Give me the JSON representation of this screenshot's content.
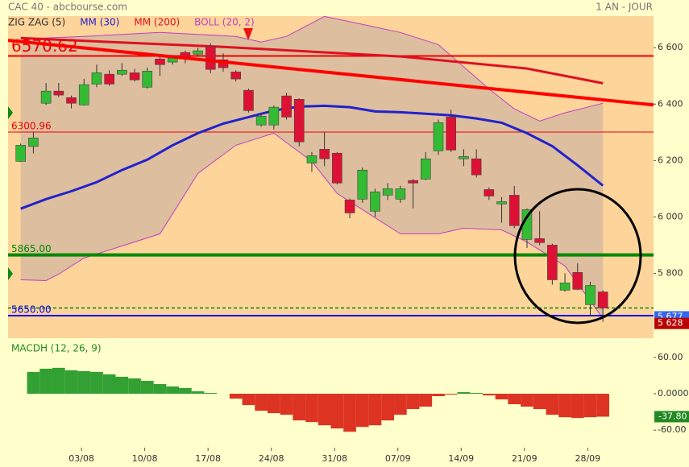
{
  "header": {
    "title": "CAC 40 - abcbourse.com",
    "period": "1 AN - JOUR"
  },
  "chart_data": [
    {
      "type": "candlestick",
      "indicators": [
        {
          "name": "ZIG ZAG (5)",
          "color": "#333333"
        },
        {
          "name": "MM (30)",
          "color": "#2222cc",
          "x": [
            0,
            2,
            4,
            6,
            8,
            10,
            12,
            14,
            16,
            18,
            20,
            22,
            24,
            26,
            28,
            30,
            32,
            34,
            36,
            38,
            40,
            42,
            44,
            46
          ],
          "values": [
            6029,
            6063,
            6091,
            6123,
            6166,
            6203,
            6254,
            6297,
            6331,
            6354,
            6377,
            6391,
            6394,
            6389,
            6374,
            6371,
            6366,
            6360,
            6349,
            6334,
            6297,
            6251,
            6183,
            6111
          ]
        },
        {
          "name": "MM (200)",
          "color": "#dd1122",
          "x": [
            0,
            16,
            30,
            40,
            46
          ],
          "values": [
            6634,
            6603,
            6569,
            6526,
            6474
          ]
        },
        {
          "name": "BOLL (20, 2)",
          "color": "#c040c0",
          "upper": {
            "x": [
              0,
              5,
              11,
              17,
              19,
              21,
              24,
              27,
              30,
              33,
              37,
              39,
              41,
              43,
              46
            ],
            "values": [
              6631,
              6640,
              6654,
              6640,
              6620,
              6640,
              6711,
              6683,
              6654,
              6611,
              6454,
              6383,
              6340,
              6369,
              6403
            ]
          },
          "lower": {
            "x": [
              0,
              2,
              3,
              5,
              8,
              11,
              14,
              17,
              20,
              23,
              25,
              28,
              30,
              33,
              35,
              38,
              40,
              43,
              46
            ],
            "values": [
              5777,
              5774,
              5797,
              5854,
              5897,
              5940,
              6154,
              6254,
              6297,
              6197,
              6083,
              5997,
              5940,
              5940,
              5960,
              5954,
              5911,
              5826,
              5640
            ]
          }
        }
      ],
      "trendline": {
        "color": "#ff0000",
        "x": [
          -1,
          50
        ],
        "values": [
          6626,
          6397
        ]
      },
      "x": [
        0,
        1,
        2,
        3,
        4,
        5,
        6,
        7,
        8,
        9,
        10,
        11,
        12,
        13,
        14,
        15,
        16,
        17,
        18,
        19,
        20,
        21,
        22,
        23,
        24,
        25,
        26,
        27,
        28,
        29,
        30,
        31,
        32,
        33,
        34,
        35,
        36,
        37,
        38,
        39,
        40,
        41,
        42,
        43,
        44,
        45,
        46
      ],
      "open": [
        6197,
        6250,
        6403,
        6446,
        6423,
        6397,
        6471,
        6506,
        6506,
        6511,
        6460,
        6560,
        6549,
        6583,
        6577,
        6606,
        6557,
        6514,
        6449,
        6326,
        6326,
        6429,
        6417,
        6191,
        6240,
        6226,
        6060,
        6063,
        6020,
        6077,
        6063,
        6129,
        6134,
        6234,
        6354,
        6206,
        6206,
        6097,
        6046,
        6077,
        5920,
        5923,
        5900,
        5740,
        5803,
        5689,
        5734
      ],
      "high": [
        6260,
        6300,
        6475,
        6475,
        6430,
        6490,
        6540,
        6520,
        6545,
        6525,
        6530,
        6570,
        6575,
        6590,
        6600,
        6615,
        6580,
        6520,
        6455,
        6370,
        6395,
        6440,
        6420,
        6230,
        6300,
        6230,
        6065,
        6175,
        6100,
        6120,
        6110,
        6135,
        6230,
        6345,
        6380,
        6240,
        6240,
        6105,
        6070,
        6110,
        6030,
        6020,
        5905,
        5800,
        5835,
        5770,
        5740
      ],
      "low": [
        6195,
        6225,
        6397,
        6425,
        6385,
        6395,
        6460,
        6465,
        6500,
        6480,
        6455,
        6500,
        6540,
        6545,
        6570,
        6510,
        6515,
        6480,
        6370,
        6320,
        6310,
        6345,
        6250,
        6160,
        6180,
        6115,
        5995,
        6050,
        6000,
        6060,
        6050,
        6030,
        6130,
        6220,
        6230,
        6180,
        6140,
        6060,
        5980,
        5960,
        5890,
        5900,
        5760,
        5735,
        5740,
        5650,
        5628
      ],
      "close": [
        6254,
        6280,
        6446,
        6432,
        6403,
        6469,
        6511,
        6471,
        6520,
        6486,
        6517,
        6540,
        6563,
        6560,
        6589,
        6523,
        6529,
        6489,
        6377,
        6357,
        6389,
        6354,
        6266,
        6217,
        6206,
        6120,
        6014,
        6166,
        6089,
        6100,
        6100,
        6120,
        6206,
        6334,
        6237,
        6214,
        6149,
        6074,
        6054,
        5969,
        6026,
        5909,
        5777,
        5766,
        5743,
        5757,
        5677
      ],
      "up_color": "#33bb33",
      "down_color": "#dd1133",
      "levels": [
        {
          "value": 6570.62,
          "label": "6570.62",
          "color": "#ee0000",
          "emphasis": true
        },
        {
          "value": 6300.96,
          "label": "6300.96",
          "color": "#ee0000"
        },
        {
          "value": 5865,
          "label": "5865.00",
          "color": "#008800"
        },
        {
          "value": 5650,
          "label": "5650.00",
          "color": "#0000ee"
        }
      ],
      "price_labels": [
        {
          "value": 5677,
          "label": "5 677",
          "color": "#3366ee",
          "line_color": "#008800"
        },
        {
          "value": 5628,
          "label": "5 628",
          "color": "#bb0000"
        }
      ],
      "xlim": [
        -1,
        50
      ],
      "ylim": [
        5570,
        6712
      ],
      "yticks": [
        {
          "value": 5800,
          "label": "5 800"
        },
        {
          "value": 6000,
          "label": "6 000"
        },
        {
          "value": 6200,
          "label": "6 200"
        },
        {
          "value": 6400,
          "label": "6 400"
        },
        {
          "value": 6600,
          "label": "6 600"
        }
      ]
    },
    {
      "type": "bar",
      "title": "MACDH (12, 26, 9)",
      "x": [
        0,
        1,
        2,
        3,
        4,
        5,
        6,
        7,
        8,
        9,
        10,
        11,
        12,
        13,
        14,
        15,
        16,
        17,
        18,
        19,
        20,
        21,
        22,
        23,
        24,
        25,
        26,
        27,
        28,
        29,
        30,
        31,
        32,
        33,
        34,
        35,
        36,
        37,
        38,
        39,
        40,
        41,
        42,
        43,
        44,
        45,
        46
      ],
      "values": [
        null,
        36,
        41.3,
        42.7,
        38.7,
        37.3,
        36,
        32,
        28,
        25.3,
        21.3,
        16,
        12,
        9.3,
        4,
        1.3,
        0,
        -8,
        -18.7,
        -28,
        -32,
        -34.7,
        -44,
        -46.7,
        -52,
        -57.3,
        -62.7,
        -54.7,
        -52,
        -44,
        -34.7,
        -25.3,
        -21.3,
        -4,
        -1.3,
        2.7,
        1.3,
        -2.7,
        -9.3,
        -17.3,
        -21.3,
        -25.3,
        -34.7,
        -38.7,
        -40,
        -38.7,
        -37.8
      ],
      "value_labels": [
        null,
        null,
        null,
        null,
        null,
        null,
        null,
        null,
        null,
        null,
        null,
        null,
        null,
        null,
        null,
        null,
        null,
        null,
        null,
        null,
        null,
        null,
        null,
        null,
        null,
        null,
        null,
        null,
        null,
        null,
        null,
        null,
        null,
        null,
        null,
        null,
        null,
        null,
        null,
        null,
        null,
        null,
        null,
        null,
        null,
        null,
        "-37.80"
      ],
      "positive_color": "#33a033",
      "negative_color": "#dd3322",
      "label_color": "#228822",
      "xlim": [
        -1,
        50
      ],
      "ylim": [
        -81,
        85
      ],
      "yticks": [
        {
          "value": -60,
          "label": "-60.00"
        },
        {
          "value": 0,
          "label": "0.0000"
        },
        {
          "value": 60,
          "label": "60.00"
        }
      ],
      "xticks": [
        {
          "value": 4.8,
          "label": "03/08"
        },
        {
          "value": 9.8,
          "label": "10/08"
        },
        {
          "value": 14.8,
          "label": "17/08"
        },
        {
          "value": 19.8,
          "label": "24/08"
        },
        {
          "value": 24.8,
          "label": "31/08"
        },
        {
          "value": 29.8,
          "label": "07/09"
        },
        {
          "value": 34.8,
          "label": "14/09"
        },
        {
          "value": 39.8,
          "label": "21/09"
        },
        {
          "value": 44.8,
          "label": "28/09"
        }
      ]
    }
  ]
}
